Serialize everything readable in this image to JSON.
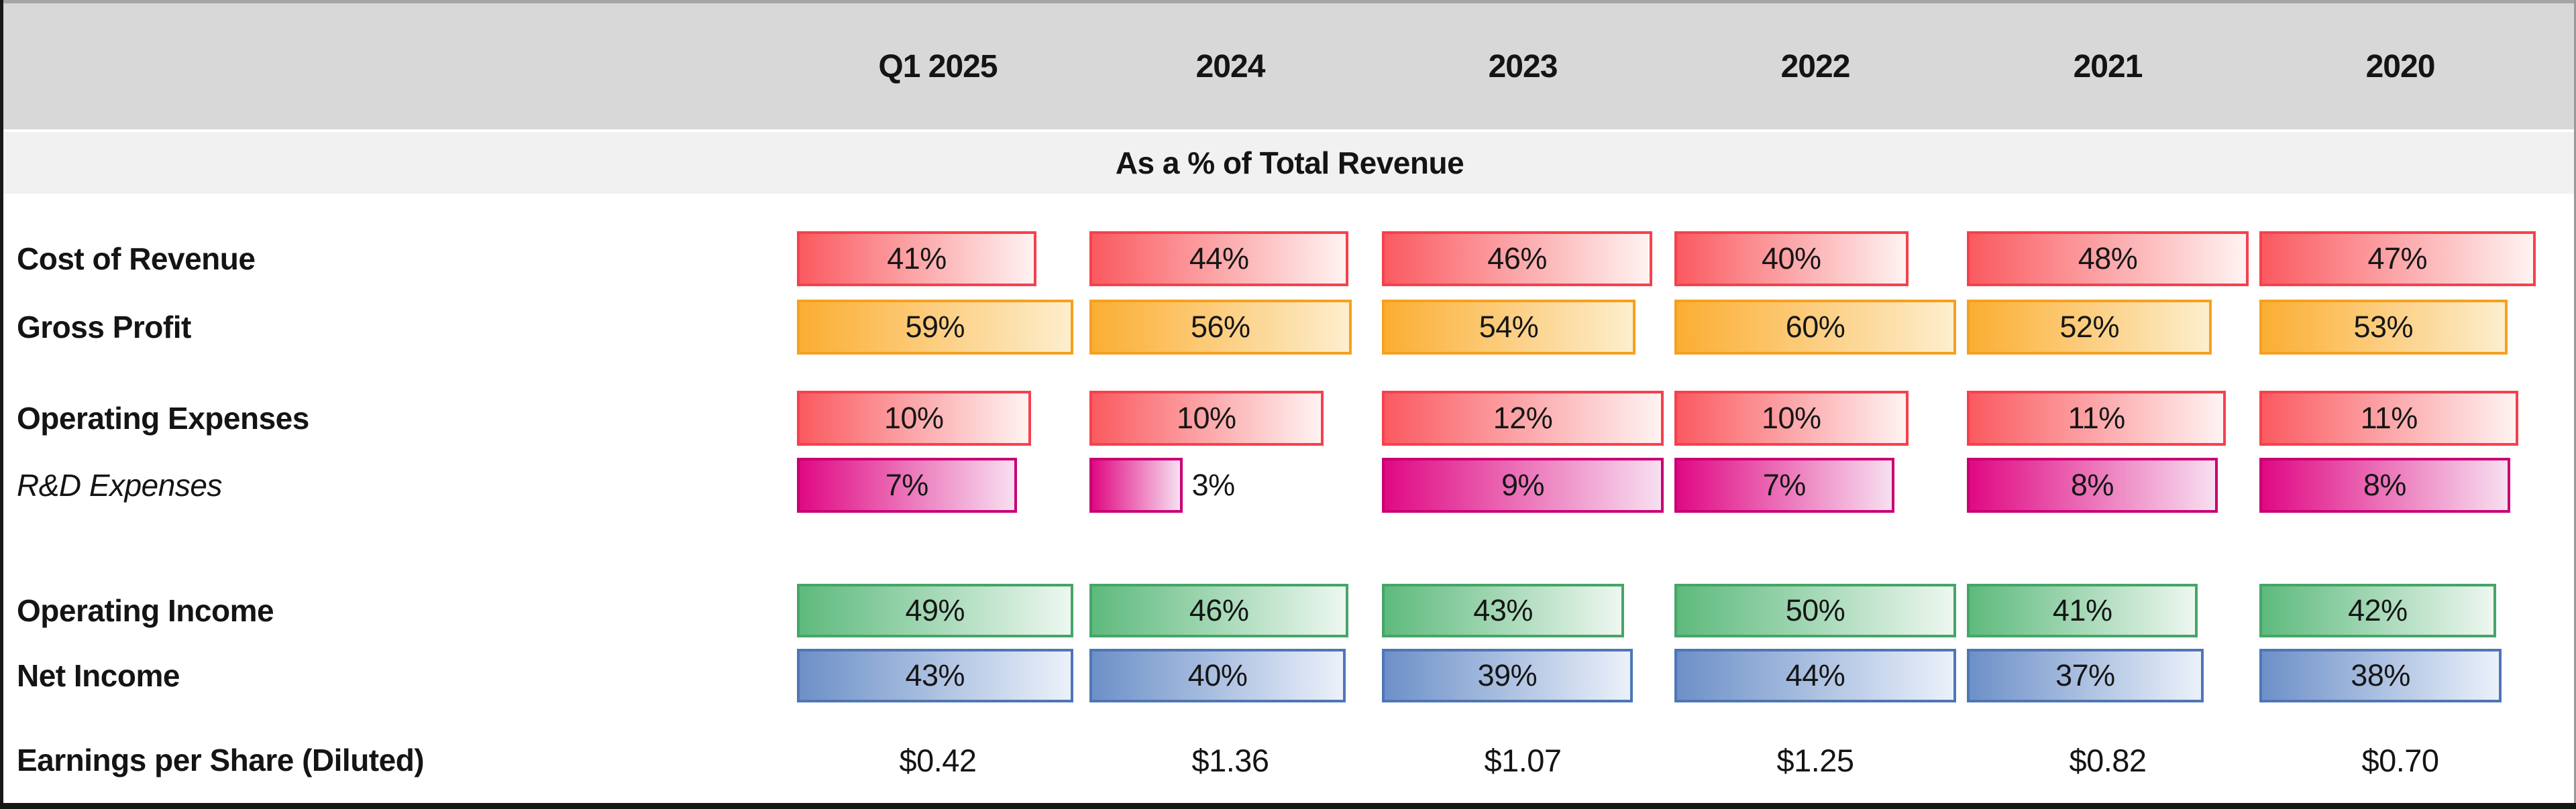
{
  "table": {
    "columns": [
      "Q1 2025",
      "2024",
      "2023",
      "2022",
      "2021",
      "2020"
    ],
    "section_header": "As a % of Total Revenue",
    "rows": [
      {
        "label": "Cost of Revenue",
        "color_key": "red",
        "values": [
          "41%",
          "44%",
          "46%",
          "40%",
          "48%",
          "47%"
        ],
        "bar_pct": [
          85,
          92,
          96,
          83,
          100,
          98
        ]
      },
      {
        "label": "Gross Profit",
        "color_key": "yellow",
        "values": [
          "59%",
          "56%",
          "54%",
          "60%",
          "52%",
          "53%"
        ],
        "bar_pct": [
          98,
          93,
          90,
          100,
          87,
          88
        ]
      },
      {
        "label": "Operating Expenses",
        "color_key": "red",
        "values": [
          "10%",
          "10%",
          "12%",
          "10%",
          "11%",
          "11%"
        ],
        "bar_pct": [
          83,
          83,
          100,
          83,
          92,
          92
        ]
      },
      {
        "label": "R&D Expenses",
        "color_key": "magenta",
        "values": [
          "7%",
          "3%",
          "9%",
          "7%",
          "8%",
          "8%"
        ],
        "bar_pct": [
          78,
          33,
          100,
          78,
          89,
          89
        ]
      },
      {
        "label": "Operating Income",
        "color_key": "green",
        "values": [
          "49%",
          "46%",
          "43%",
          "50%",
          "41%",
          "42%"
        ],
        "bar_pct": [
          98,
          92,
          86,
          100,
          82,
          84
        ]
      },
      {
        "label": "Net Income",
        "color_key": "blue",
        "values": [
          "43%",
          "40%",
          "39%",
          "44%",
          "37%",
          "38%"
        ],
        "bar_pct": [
          98,
          91,
          89,
          100,
          84,
          86
        ]
      }
    ],
    "eps_row": {
      "label": "Earnings per Share (Diluted)",
      "values": [
        "$0.42",
        "$1.36",
        "$1.07",
        "$1.25",
        "$0.82",
        "$0.70"
      ]
    }
  },
  "colors": {
    "red": {
      "fill": "#FA5A60",
      "fade": "#FEF3F2",
      "border": "#F5414D"
    },
    "yellow": {
      "fill": "#FBAE33",
      "fade": "#FDEECD",
      "border": "#F5A01F"
    },
    "magenta": {
      "fill": "#E00983",
      "fade": "#F7DFF0",
      "border": "#C80074"
    },
    "green": {
      "fill": "#5EBA7D",
      "fade": "#EDF7F0",
      "border": "#46A567"
    },
    "blue": {
      "fill": "#6D90C8",
      "fade": "#EBF1FA",
      "border": "#4E76B6"
    },
    "header_band": "#d8d8d8",
    "subtitle_band": "#f1f1f1"
  },
  "chart_data": {
    "type": "table",
    "title": "As a % of Total Revenue",
    "categories": [
      "Q1 2025",
      "2024",
      "2023",
      "2022",
      "2021",
      "2020"
    ],
    "series": [
      {
        "name": "Cost of Revenue",
        "unit": "%",
        "values": [
          41,
          44,
          46,
          40,
          48,
          47
        ]
      },
      {
        "name": "Gross Profit",
        "unit": "%",
        "values": [
          59,
          56,
          54,
          60,
          52,
          53
        ]
      },
      {
        "name": "Operating Expenses",
        "unit": "%",
        "values": [
          10,
          10,
          12,
          10,
          11,
          11
        ]
      },
      {
        "name": "R&D Expenses",
        "unit": "%",
        "values": [
          7,
          3,
          9,
          7,
          8,
          8
        ]
      },
      {
        "name": "Operating Income",
        "unit": "%",
        "values": [
          49,
          46,
          43,
          50,
          41,
          42
        ]
      },
      {
        "name": "Net Income",
        "unit": "%",
        "values": [
          43,
          40,
          39,
          44,
          37,
          38
        ]
      },
      {
        "name": "Earnings per Share (Diluted)",
        "unit": "$",
        "values": [
          0.42,
          1.36,
          1.07,
          1.25,
          0.82,
          0.7
        ]
      }
    ],
    "layout": "data-bars scaled per row (0 to row max), bar label inside bar, short bars label outside"
  }
}
